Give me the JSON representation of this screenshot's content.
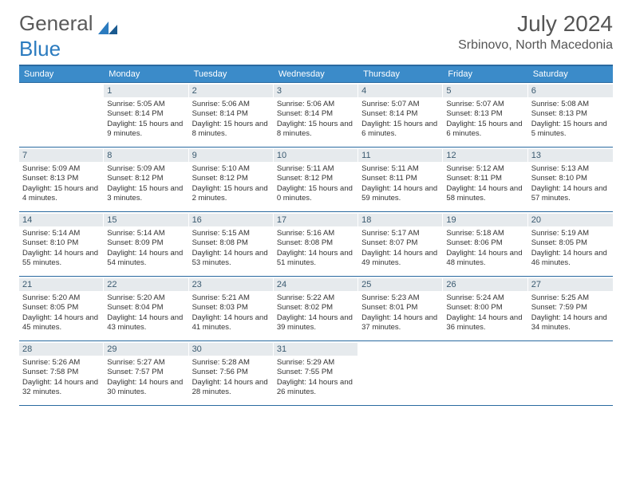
{
  "logo": {
    "text1": "General",
    "text2": "Blue"
  },
  "title": {
    "month": "July 2024",
    "location": "Srbinovo, North Macedonia"
  },
  "colors": {
    "header_bg": "#3b8bc9",
    "header_border": "#2a6aa0",
    "daynum_bg": "#e6eaed",
    "daynum_color": "#3a5a70",
    "text": "#333333",
    "logo_gray": "#5a5a5a",
    "logo_blue": "#2b7bbf"
  },
  "daysOfWeek": [
    "Sunday",
    "Monday",
    "Tuesday",
    "Wednesday",
    "Thursday",
    "Friday",
    "Saturday"
  ],
  "weeks": [
    [
      null,
      {
        "n": "1",
        "rise": "5:05 AM",
        "set": "8:14 PM",
        "dl": "15 hours and 9 minutes."
      },
      {
        "n": "2",
        "rise": "5:06 AM",
        "set": "8:14 PM",
        "dl": "15 hours and 8 minutes."
      },
      {
        "n": "3",
        "rise": "5:06 AM",
        "set": "8:14 PM",
        "dl": "15 hours and 8 minutes."
      },
      {
        "n": "4",
        "rise": "5:07 AM",
        "set": "8:14 PM",
        "dl": "15 hours and 6 minutes."
      },
      {
        "n": "5",
        "rise": "5:07 AM",
        "set": "8:13 PM",
        "dl": "15 hours and 6 minutes."
      },
      {
        "n": "6",
        "rise": "5:08 AM",
        "set": "8:13 PM",
        "dl": "15 hours and 5 minutes."
      }
    ],
    [
      {
        "n": "7",
        "rise": "5:09 AM",
        "set": "8:13 PM",
        "dl": "15 hours and 4 minutes."
      },
      {
        "n": "8",
        "rise": "5:09 AM",
        "set": "8:12 PM",
        "dl": "15 hours and 3 minutes."
      },
      {
        "n": "9",
        "rise": "5:10 AM",
        "set": "8:12 PM",
        "dl": "15 hours and 2 minutes."
      },
      {
        "n": "10",
        "rise": "5:11 AM",
        "set": "8:12 PM",
        "dl": "15 hours and 0 minutes."
      },
      {
        "n": "11",
        "rise": "5:11 AM",
        "set": "8:11 PM",
        "dl": "14 hours and 59 minutes."
      },
      {
        "n": "12",
        "rise": "5:12 AM",
        "set": "8:11 PM",
        "dl": "14 hours and 58 minutes."
      },
      {
        "n": "13",
        "rise": "5:13 AM",
        "set": "8:10 PM",
        "dl": "14 hours and 57 minutes."
      }
    ],
    [
      {
        "n": "14",
        "rise": "5:14 AM",
        "set": "8:10 PM",
        "dl": "14 hours and 55 minutes."
      },
      {
        "n": "15",
        "rise": "5:14 AM",
        "set": "8:09 PM",
        "dl": "14 hours and 54 minutes."
      },
      {
        "n": "16",
        "rise": "5:15 AM",
        "set": "8:08 PM",
        "dl": "14 hours and 53 minutes."
      },
      {
        "n": "17",
        "rise": "5:16 AM",
        "set": "8:08 PM",
        "dl": "14 hours and 51 minutes."
      },
      {
        "n": "18",
        "rise": "5:17 AM",
        "set": "8:07 PM",
        "dl": "14 hours and 49 minutes."
      },
      {
        "n": "19",
        "rise": "5:18 AM",
        "set": "8:06 PM",
        "dl": "14 hours and 48 minutes."
      },
      {
        "n": "20",
        "rise": "5:19 AM",
        "set": "8:05 PM",
        "dl": "14 hours and 46 minutes."
      }
    ],
    [
      {
        "n": "21",
        "rise": "5:20 AM",
        "set": "8:05 PM",
        "dl": "14 hours and 45 minutes."
      },
      {
        "n": "22",
        "rise": "5:20 AM",
        "set": "8:04 PM",
        "dl": "14 hours and 43 minutes."
      },
      {
        "n": "23",
        "rise": "5:21 AM",
        "set": "8:03 PM",
        "dl": "14 hours and 41 minutes."
      },
      {
        "n": "24",
        "rise": "5:22 AM",
        "set": "8:02 PM",
        "dl": "14 hours and 39 minutes."
      },
      {
        "n": "25",
        "rise": "5:23 AM",
        "set": "8:01 PM",
        "dl": "14 hours and 37 minutes."
      },
      {
        "n": "26",
        "rise": "5:24 AM",
        "set": "8:00 PM",
        "dl": "14 hours and 36 minutes."
      },
      {
        "n": "27",
        "rise": "5:25 AM",
        "set": "7:59 PM",
        "dl": "14 hours and 34 minutes."
      }
    ],
    [
      {
        "n": "28",
        "rise": "5:26 AM",
        "set": "7:58 PM",
        "dl": "14 hours and 32 minutes."
      },
      {
        "n": "29",
        "rise": "5:27 AM",
        "set": "7:57 PM",
        "dl": "14 hours and 30 minutes."
      },
      {
        "n": "30",
        "rise": "5:28 AM",
        "set": "7:56 PM",
        "dl": "14 hours and 28 minutes."
      },
      {
        "n": "31",
        "rise": "5:29 AM",
        "set": "7:55 PM",
        "dl": "14 hours and 26 minutes."
      },
      null,
      null,
      null
    ]
  ],
  "labels": {
    "sunrise": "Sunrise:",
    "sunset": "Sunset:",
    "daylight": "Daylight:"
  }
}
